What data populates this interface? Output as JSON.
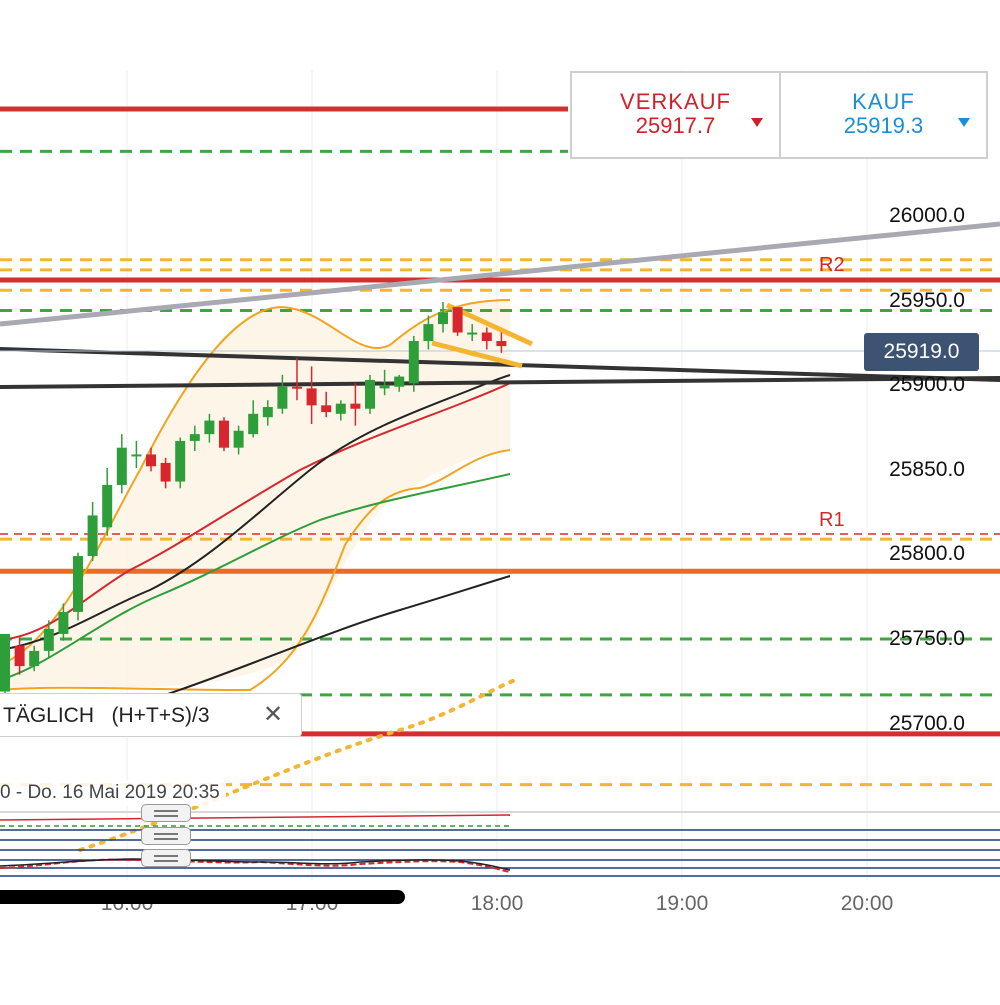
{
  "quote": {
    "sell_label": "VERKAUF",
    "sell_price": "25917.7",
    "buy_label": "KAUF",
    "buy_price": "25919.3"
  },
  "current_price_tag": "25919.0",
  "price_axis_labels": [
    "26000.0",
    "25950.0",
    "25900.0",
    "25850.0",
    "25800.0",
    "25750.0",
    "25700.0"
  ],
  "time_axis_labels": [
    "16:00",
    "17:00",
    "18:00",
    "19:00",
    "20:00"
  ],
  "pivot_labels": {
    "r2": "R2",
    "r1": "R1"
  },
  "legend": {
    "text": "TÄGLICH   (H+T+S)/3",
    "close_icon": "close-icon"
  },
  "date_stamp": "0 - Do. 16 Mai 2019 20:35",
  "colors": {
    "up_candle": "#2e9e3a",
    "down_candle": "#d7262e",
    "resistance": "#d32f2f",
    "support_green": "#3fa63f",
    "pivot_orange": "#f4b533",
    "orange_line": "#ec6a22",
    "trend_gray": "#a9a9b3",
    "trend_black": "#333333",
    "sell": "#d0202a",
    "buy": "#1b8ed6",
    "price_tag_bg": "#3d5373"
  },
  "chart_data": {
    "type": "candlestick",
    "instrument_quote": {
      "sell": 25917.7,
      "buy": 25919.3
    },
    "current_price": 25919.0,
    "ylim": [
      25660,
      26100
    ],
    "candles": [
      {
        "o": 25718,
        "h": 25752,
        "l": 25715,
        "c": 25752
      },
      {
        "o": 25745,
        "h": 25750,
        "l": 25728,
        "c": 25733
      },
      {
        "o": 25733,
        "h": 25745,
        "l": 25730,
        "c": 25742
      },
      {
        "o": 25742,
        "h": 25760,
        "l": 25738,
        "c": 25755
      },
      {
        "o": 25752,
        "h": 25770,
        "l": 25748,
        "c": 25765
      },
      {
        "o": 25765,
        "h": 25800,
        "l": 25760,
        "c": 25798
      },
      {
        "o": 25798,
        "h": 25830,
        "l": 25795,
        "c": 25822
      },
      {
        "o": 25815,
        "h": 25850,
        "l": 25810,
        "c": 25840
      },
      {
        "o": 25840,
        "h": 25870,
        "l": 25835,
        "c": 25862
      },
      {
        "o": 25858,
        "h": 25866,
        "l": 25850,
        "c": 25858
      },
      {
        "o": 25858,
        "h": 25862,
        "l": 25848,
        "c": 25851
      },
      {
        "o": 25853,
        "h": 25856,
        "l": 25838,
        "c": 25842
      },
      {
        "o": 25842,
        "h": 25868,
        "l": 25838,
        "c": 25866
      },
      {
        "o": 25866,
        "h": 25875,
        "l": 25860,
        "c": 25870
      },
      {
        "o": 25870,
        "h": 25882,
        "l": 25865,
        "c": 25878
      },
      {
        "o": 25878,
        "h": 25880,
        "l": 25860,
        "c": 25862
      },
      {
        "o": 25862,
        "h": 25875,
        "l": 25858,
        "c": 25872
      },
      {
        "o": 25870,
        "h": 25890,
        "l": 25868,
        "c": 25882
      },
      {
        "o": 25880,
        "h": 25890,
        "l": 25875,
        "c": 25886
      },
      {
        "o": 25885,
        "h": 25905,
        "l": 25882,
        "c": 25898
      },
      {
        "o": 25898,
        "h": 25915,
        "l": 25890,
        "c": 25897
      },
      {
        "o": 25897,
        "h": 25910,
        "l": 25876,
        "c": 25887
      },
      {
        "o": 25887,
        "h": 25895,
        "l": 25880,
        "c": 25883
      },
      {
        "o": 25882,
        "h": 25890,
        "l": 25878,
        "c": 25888
      },
      {
        "o": 25888,
        "h": 25900,
        "l": 25875,
        "c": 25885
      },
      {
        "o": 25885,
        "h": 25905,
        "l": 25882,
        "c": 25902
      },
      {
        "o": 25897,
        "h": 25908,
        "l": 25893,
        "c": 25899
      },
      {
        "o": 25898,
        "h": 25905,
        "l": 25895,
        "c": 25904
      },
      {
        "o": 25900,
        "h": 25928,
        "l": 25895,
        "c": 25925
      },
      {
        "o": 25925,
        "h": 25940,
        "l": 25920,
        "c": 25935
      },
      {
        "o": 25935,
        "h": 25948,
        "l": 25930,
        "c": 25942
      },
      {
        "o": 25945,
        "h": 25945,
        "l": 25928,
        "c": 25930
      },
      {
        "o": 25930,
        "h": 25935,
        "l": 25925,
        "c": 25930
      },
      {
        "o": 25930,
        "h": 25933,
        "l": 25920,
        "c": 25925
      },
      {
        "o": 25925,
        "h": 25930,
        "l": 25918,
        "c": 25922
      }
    ],
    "levels": [
      {
        "name": "resistance-top",
        "price": 26062,
        "color": "#d32f2f",
        "style": "solid"
      },
      {
        "name": "green-top",
        "price": 26037,
        "color": "#3fa63f",
        "style": "dashed"
      },
      {
        "name": "orange-r2-upper",
        "price": 25973,
        "color": "#f4b533",
        "style": "dashed"
      },
      {
        "name": "orange-r2",
        "price": 25967,
        "color": "#f4b533",
        "style": "dashed"
      },
      {
        "name": "r2",
        "price": 25961,
        "color": "#d32f2f",
        "style": "solid"
      },
      {
        "name": "orange-r2-lower",
        "price": 25955,
        "color": "#f4b533",
        "style": "dashed"
      },
      {
        "name": "green-upper",
        "price": 25943,
        "color": "#3fa63f",
        "style": "dashed"
      },
      {
        "name": "r1",
        "price": 25811,
        "color": "#d32f2f",
        "style": "thin-dashed"
      },
      {
        "name": "orange-r1",
        "price": 25808,
        "color": "#f4b533",
        "style": "dashed"
      },
      {
        "name": "orange-solid",
        "price": 25789,
        "color": "#ec6a22",
        "style": "solid"
      },
      {
        "name": "green-mid",
        "price": 25749,
        "color": "#3fa63f",
        "style": "dashed"
      },
      {
        "name": "green-low",
        "price": 25716,
        "color": "#3fa63f",
        "style": "dashed"
      },
      {
        "name": "red-low",
        "price": 25693,
        "color": "#d32f2f",
        "style": "solid"
      },
      {
        "name": "orange-low",
        "price": 25663,
        "color": "#f4b533",
        "style": "dashed"
      }
    ]
  }
}
